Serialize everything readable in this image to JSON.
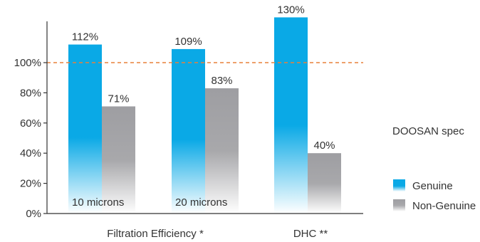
{
  "chart_data": {
    "type": "bar",
    "categories": [
      "10 microns",
      "20 microns",
      "DHC"
    ],
    "group_labels": [
      "Filtration Efficiency *",
      "DHC **"
    ],
    "series": [
      {
        "name": "Genuine",
        "values": [
          112,
          109,
          130
        ],
        "labels": [
          "112%",
          "109%",
          "130%"
        ]
      },
      {
        "name": "Non-Genuine",
        "values": [
          71,
          83,
          40
        ],
        "labels": [
          "71%",
          "83%",
          "40%"
        ]
      }
    ],
    "in_bar_labels": [
      "10 microns",
      "20 microns"
    ],
    "y_ticks": [
      0,
      20,
      40,
      60,
      80,
      100
    ],
    "y_tick_labels": [
      "0%",
      "20%",
      "40%",
      "60%",
      "80%",
      "100%"
    ],
    "ylim": [
      0,
      125
    ],
    "reference_line": {
      "value": 100,
      "label": "DOOSAN spec",
      "color": "#e8803a"
    },
    "legend": {
      "position": "right",
      "items": [
        "Genuine",
        "Non-Genuine"
      ]
    },
    "colors": {
      "genuine": "#0aa9e6",
      "non_genuine": "#9e9ea2",
      "axis": "#333333"
    }
  }
}
